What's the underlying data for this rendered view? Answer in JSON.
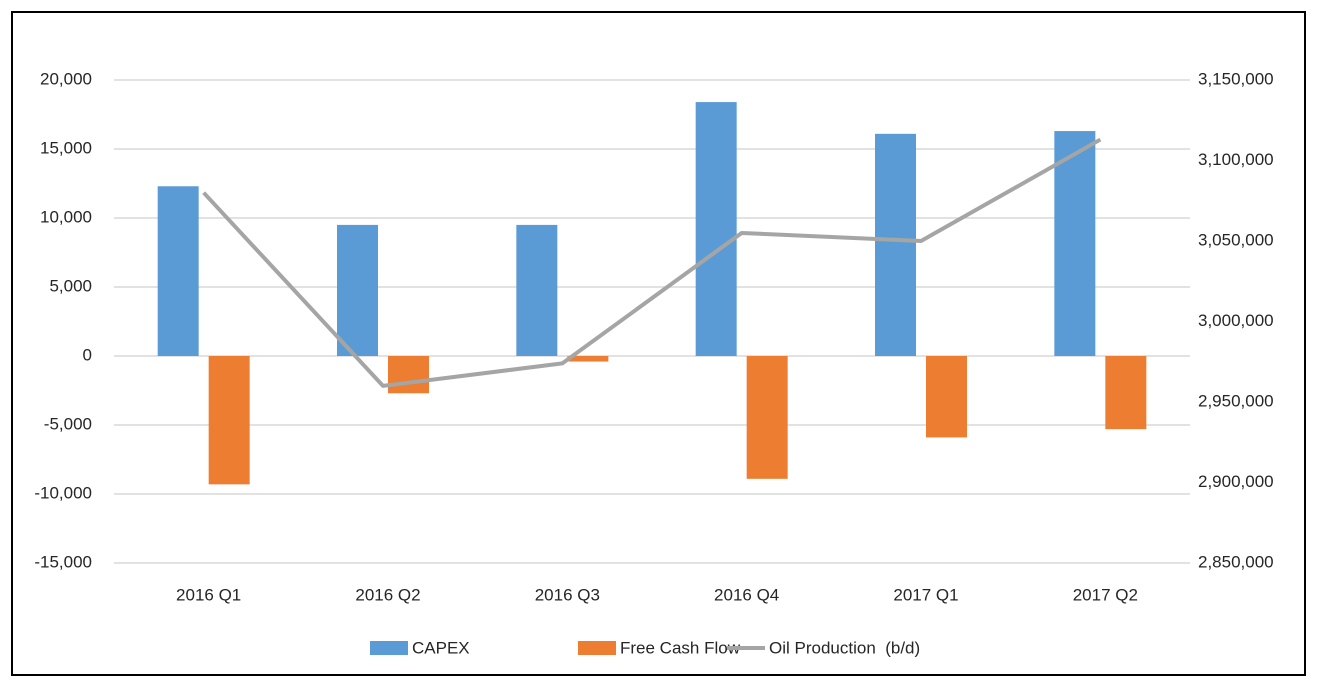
{
  "chart_data": {
    "type": "bar_line",
    "categories": [
      "2016 Q1",
      "2016 Q2",
      "2016 Q3",
      "2016 Q4",
      "2017 Q1",
      "2017 Q2"
    ],
    "series": [
      {
        "name": "CAPEX",
        "type": "bar",
        "color": "#5b9bd5",
        "values": [
          12300,
          9500,
          9500,
          18400,
          16100,
          16300
        ]
      },
      {
        "name": "Free Cash Flow",
        "type": "bar",
        "color": "#ed7d31",
        "values": [
          -9300,
          -2700,
          -400,
          -8900,
          -5900,
          -5300
        ]
      },
      {
        "name": "Oil Production  (b/d)",
        "type": "line",
        "axis": "y2",
        "color": "#a5a5a5",
        "values": [
          3080000,
          2960000,
          2974000,
          3055000,
          3050000,
          3113000
        ]
      }
    ],
    "ylim": [
      -15000,
      20000
    ],
    "yticks": [
      {
        "value": -15000,
        "label": "-15,000"
      },
      {
        "value": -10000,
        "label": "-10,000"
      },
      {
        "value": -5000,
        "label": "-5,000"
      },
      0,
      {
        "value": 5000,
        "label": "5,000"
      },
      {
        "value": 10000,
        "label": "10,000"
      },
      {
        "value": 15000,
        "label": "15,000"
      },
      {
        "value": 20000,
        "label": "20,000"
      }
    ],
    "y2lim": [
      2850000,
      3150000
    ],
    "y2ticks": [
      {
        "value": 2850000,
        "label": "2,850,000"
      },
      {
        "value": 2900000,
        "label": "2,900,000"
      },
      {
        "value": 2950000,
        "label": "2,950,000"
      },
      {
        "value": 3000000,
        "label": "3,000,000"
      },
      {
        "value": 3050000,
        "label": "3,050,000"
      },
      {
        "value": 3100000,
        "label": "3,100,000"
      },
      {
        "value": 3150000,
        "label": "3,150,000"
      }
    ],
    "grid": true,
    "legend": "bottom"
  }
}
